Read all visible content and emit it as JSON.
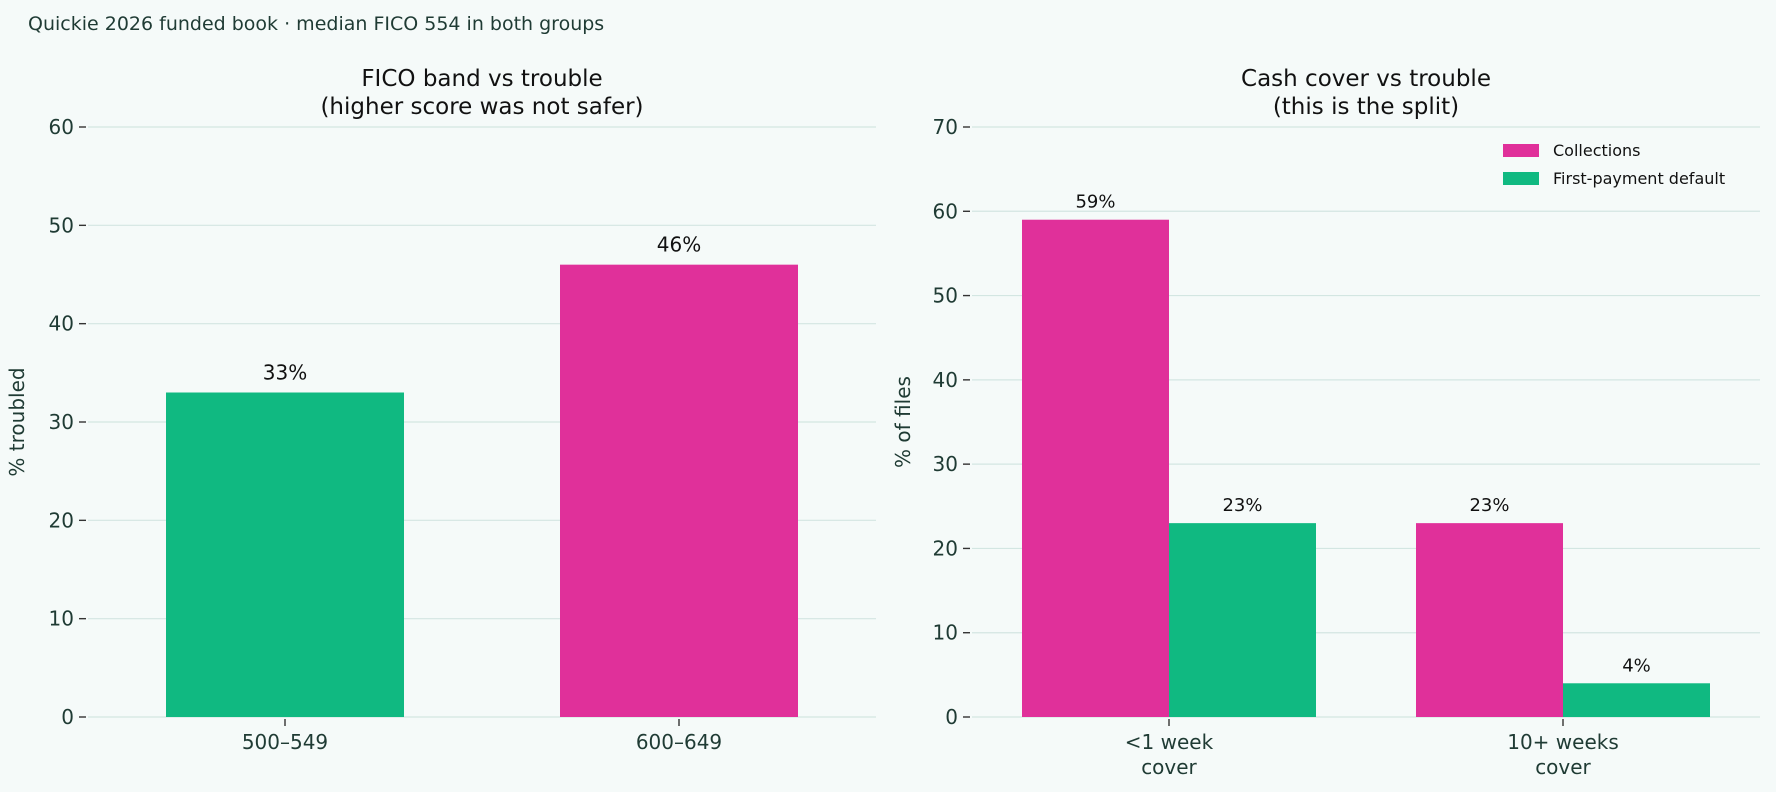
{
  "caption": "Quickie 2026 funded book · median FICO 554 in both groups",
  "colors": {
    "collections": "#e0309a",
    "first_payment_default": "#10b981"
  },
  "chart_data": [
    {
      "type": "bar",
      "title": "FICO band vs trouble",
      "subtitle": "(higher score was not safer)",
      "ylabel": "% troubled",
      "xlabel": "",
      "ylim": [
        0,
        60
      ],
      "yticks": [
        0,
        10,
        20,
        30,
        40,
        50,
        60
      ],
      "grid": true,
      "categories": [
        "500–549",
        "600–649"
      ],
      "values": [
        33,
        46
      ],
      "labels": [
        "33%",
        "46%"
      ],
      "bar_colors": [
        "#10b981",
        "#e0309a"
      ]
    },
    {
      "type": "bar",
      "title": "Cash cover vs trouble",
      "subtitle": "(this is the split)",
      "ylabel": "% of files",
      "xlabel": "",
      "ylim": [
        0,
        70
      ],
      "yticks": [
        0,
        10,
        20,
        30,
        40,
        50,
        60,
        70
      ],
      "grid": true,
      "legend_position": "top-right",
      "categories": [
        [
          "<1 week",
          "cover"
        ],
        [
          "10+ weeks",
          "cover"
        ]
      ],
      "series": [
        {
          "name": "Collections",
          "color": "#e0309a",
          "values": [
            59,
            23
          ],
          "labels": [
            "59%",
            "23%"
          ]
        },
        {
          "name": "First-payment default",
          "color": "#10b981",
          "values": [
            23,
            4
          ],
          "labels": [
            "23%",
            "4%"
          ]
        }
      ]
    }
  ]
}
